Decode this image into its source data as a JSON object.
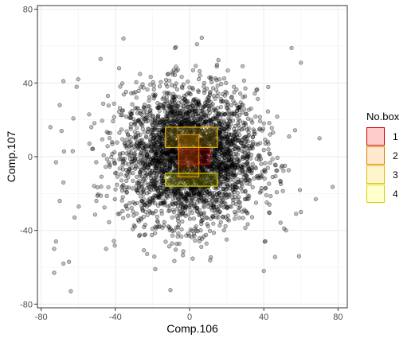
{
  "chart_data": {
    "type": "scatter",
    "xlabel": "Comp.106",
    "ylabel": "Comp.107",
    "xlim": [
      -82,
      85
    ],
    "ylim": [
      -82,
      82
    ],
    "x_ticks": [
      -80,
      -40,
      0,
      40,
      80
    ],
    "y_ticks": [
      -80,
      -40,
      0,
      40,
      80
    ],
    "x_tick_labels": [
      "-80",
      "-40",
      "0",
      "40",
      "80"
    ],
    "y_tick_labels": [
      "-80",
      "-40",
      "0",
      "40",
      "80"
    ],
    "grid": true,
    "point_color": "#000000",
    "point_count": 3500,
    "point_spread_sd": 18,
    "points_outliers": [
      {
        "x": 4,
        "y": 61
      },
      {
        "x": 55,
        "y": 59
      },
      {
        "x": -48,
        "y": 53
      },
      {
        "x": 60,
        "y": 51
      },
      {
        "x": -38,
        "y": 48
      },
      {
        "x": -68,
        "y": 41
      },
      {
        "x": -60,
        "y": 42
      },
      {
        "x": -70,
        "y": 28
      },
      {
        "x": -75,
        "y": 16
      },
      {
        "x": -69,
        "y": 14
      },
      {
        "x": 70,
        "y": 10
      },
      {
        "x": -63,
        "y": 3
      },
      {
        "x": -72,
        "y": -3
      },
      {
        "x": -68,
        "y": -14
      },
      {
        "x": -70,
        "y": -24
      },
      {
        "x": 68,
        "y": -23
      },
      {
        "x": 60,
        "y": -30
      },
      {
        "x": -62,
        "y": -33
      },
      {
        "x": -72,
        "y": -46
      },
      {
        "x": -73,
        "y": -50
      },
      {
        "x": -65,
        "y": -57
      },
      {
        "x": -68,
        "y": -58
      },
      {
        "x": -73,
        "y": -63
      },
      {
        "x": -64,
        "y": -73
      },
      {
        "x": 59,
        "y": -54
      },
      {
        "x": 52,
        "y": -40
      },
      {
        "x": -45,
        "y": -50
      },
      {
        "x": 40,
        "y": -62
      }
    ],
    "boxes": [
      {
        "box": "1",
        "x0": -6,
        "x1": 11,
        "y0": -4,
        "y1": 4
      },
      {
        "box": "2",
        "x0": -6,
        "x1": 5,
        "y0": -11,
        "y1": 12
      },
      {
        "box": "3",
        "x0": -13,
        "x1": 15,
        "y0": 5,
        "y1": 16
      },
      {
        "box": "4",
        "x0": -13,
        "x1": 15,
        "y0": -16,
        "y1": -9
      }
    ],
    "legend": {
      "title": "No.box",
      "placement": "right",
      "entries": [
        {
          "label": "1",
          "fill": "#ff0000",
          "stroke": "#cc0000"
        },
        {
          "label": "2",
          "fill": "#ff8c00",
          "stroke": "#e07b00"
        },
        {
          "label": "3",
          "fill": "#ffcc00",
          "stroke": "#e6b800"
        },
        {
          "label": "4",
          "fill": "#ffff00",
          "stroke": "#d4d400"
        }
      ]
    }
  }
}
